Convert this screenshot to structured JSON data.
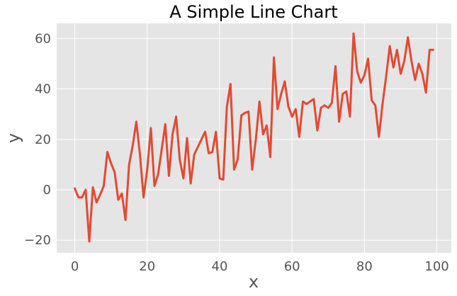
{
  "chart_data": {
    "type": "line",
    "title": "A Simple Line Chart",
    "xlabel": "x",
    "ylabel": "y",
    "xlim": [
      -5,
      104
    ],
    "ylim": [
      -25,
      66
    ],
    "grid": true,
    "x_ticks": [
      0,
      20,
      40,
      60,
      80,
      100
    ],
    "x_tick_labels": [
      "0",
      "20",
      "40",
      "60",
      "80",
      "100"
    ],
    "y_ticks": [
      -20,
      0,
      20,
      40,
      60
    ],
    "y_tick_labels": [
      "−20",
      "0",
      "20",
      "40",
      "60"
    ],
    "series": [
      {
        "name": "y",
        "color": "#E24A33",
        "x": [
          0,
          1,
          2,
          3,
          4,
          5,
          6,
          7,
          8,
          9,
          10,
          11,
          12,
          13,
          14,
          15,
          16,
          17,
          18,
          19,
          20,
          21,
          22,
          23,
          24,
          25,
          26,
          27,
          28,
          29,
          30,
          31,
          32,
          33,
          34,
          35,
          36,
          37,
          38,
          39,
          40,
          41,
          42,
          43,
          44,
          45,
          46,
          47,
          48,
          49,
          50,
          51,
          52,
          53,
          54,
          55,
          56,
          57,
          58,
          59,
          60,
          61,
          62,
          63,
          64,
          65,
          66,
          67,
          68,
          69,
          70,
          71,
          72,
          73,
          74,
          75,
          76,
          77,
          78,
          79,
          80,
          81,
          82,
          83,
          84,
          85,
          86,
          87,
          88,
          89,
          90,
          91,
          92,
          93,
          94,
          95,
          96,
          97,
          98,
          99
        ],
        "values": [
          0.5,
          -3,
          -3,
          0,
          -20.5,
          1,
          -5,
          -2,
          1.5,
          15,
          10.5,
          7,
          -4,
          -1.5,
          -12,
          10,
          17.5,
          27,
          14,
          -3,
          8,
          24.5,
          1.5,
          6,
          16,
          26,
          5.5,
          22,
          29,
          12,
          4.5,
          20.5,
          2.5,
          14,
          17,
          20,
          23,
          14.5,
          15,
          23,
          4.5,
          4,
          33,
          42,
          8,
          12,
          29.5,
          30.5,
          31,
          8,
          20,
          35,
          22,
          25.5,
          13,
          52.5,
          32,
          38,
          43,
          33,
          29,
          32,
          21,
          35,
          34,
          35,
          36,
          23.5,
          32.5,
          33.5,
          32.5,
          34.5,
          49,
          27,
          38,
          39,
          29,
          62,
          47,
          42.5,
          45.5,
          52,
          35.5,
          33.5,
          21,
          34,
          45,
          57,
          48.5,
          55.5,
          46,
          51,
          60.5,
          51,
          43.5,
          50,
          46,
          38.5,
          55.5,
          55.5
        ]
      }
    ]
  }
}
